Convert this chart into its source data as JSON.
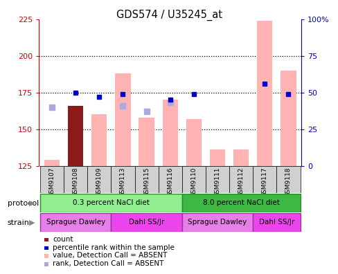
{
  "title": "GDS574 / U35245_at",
  "samples": [
    "GSM9107",
    "GSM9108",
    "GSM9109",
    "GSM9113",
    "GSM9115",
    "GSM9116",
    "GSM9110",
    "GSM9111",
    "GSM9112",
    "GSM9117",
    "GSM9118"
  ],
  "bar_values": [
    129,
    166,
    160,
    188,
    158,
    170,
    157,
    136,
    136,
    224,
    190
  ],
  "bar_colors": [
    "#ffb3b3",
    "#8b1a1a",
    "#ffb3b3",
    "#ffb3b3",
    "#ffb3b3",
    "#ffb3b3",
    "#ffb3b3",
    "#ffb3b3",
    "#ffb3b3",
    "#ffb3b3",
    "#ffb3b3"
  ],
  "rank_dots_y": [
    null,
    175,
    172,
    174,
    null,
    170,
    174,
    null,
    null,
    181,
    174
  ],
  "value_dots_y": [
    165,
    null,
    null,
    166,
    162,
    168,
    null,
    null,
    null,
    null,
    null
  ],
  "ylim_left": [
    125,
    225
  ],
  "ylim_right": [
    0,
    100
  ],
  "yticks_left": [
    125,
    150,
    175,
    200,
    225
  ],
  "yticks_right": [
    0,
    25,
    50,
    75,
    100
  ],
  "ytick_labels_left": [
    "125",
    "150",
    "175",
    "200",
    "225"
  ],
  "ytick_labels_right": [
    "0",
    "25",
    "50",
    "75",
    "100%"
  ],
  "protocol_groups": [
    {
      "label": "0.3 percent NaCl diet",
      "start": 0,
      "end": 5,
      "color": "#90ee90"
    },
    {
      "label": "8.0 percent NaCl diet",
      "start": 6,
      "end": 10,
      "color": "#3cb843"
    }
  ],
  "strain_groups": [
    {
      "label": "Sprague Dawley",
      "start": 0,
      "end": 2,
      "color": "#e87fe8"
    },
    {
      "label": "Dahl SS/Jr",
      "start": 3,
      "end": 5,
      "color": "#ee44ee"
    },
    {
      "label": "Sprague Dawley",
      "start": 6,
      "end": 8,
      "color": "#e87fe8"
    },
    {
      "label": "Dahl SS/Jr",
      "start": 9,
      "end": 10,
      "color": "#ee44ee"
    }
  ],
  "dotted_lines": [
    150,
    175,
    200
  ],
  "bar_width": 0.65,
  "axis_left_color": "#cc0000",
  "axis_right_color": "#0000bb",
  "rank_dot_color": "#0000cc",
  "value_dot_color": "#aaaadd",
  "legend_items": [
    {
      "label": "count",
      "color": "#8b1a1a"
    },
    {
      "label": "percentile rank within the sample",
      "color": "#0000cc"
    },
    {
      "label": "value, Detection Call = ABSENT",
      "color": "#ffb3b3"
    },
    {
      "label": "rank, Detection Call = ABSENT",
      "color": "#aaaadd"
    }
  ]
}
